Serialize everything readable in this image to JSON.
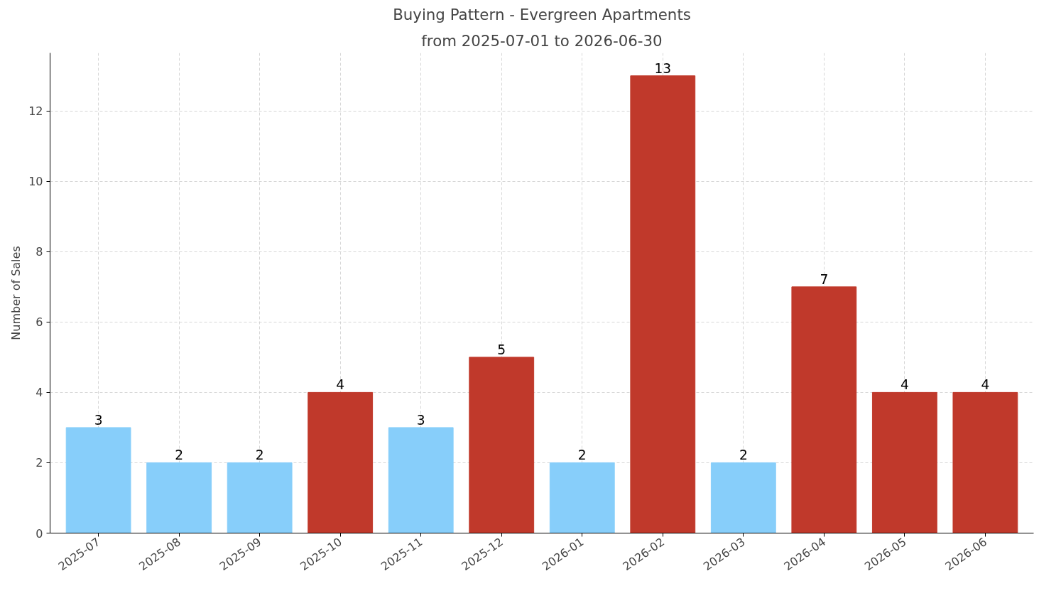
{
  "chart_data": {
    "type": "bar",
    "title": "Buying Pattern - Evergreen Apartments",
    "subtitle": "from 2025-07-01 to 2026-06-30",
    "ylabel": "Number of Sales",
    "categories": [
      "2025-07",
      "2025-08",
      "2025-09",
      "2025-10",
      "2025-11",
      "2025-12",
      "2026-01",
      "2026-02",
      "2026-03",
      "2026-04",
      "2026-05",
      "2026-06"
    ],
    "values": [
      3,
      2,
      2,
      4,
      3,
      5,
      2,
      13,
      2,
      7,
      4,
      4
    ],
    "colors": [
      "#87cefa",
      "#87cefa",
      "#87cefa",
      "#c0392b",
      "#87cefa",
      "#c0392b",
      "#87cefa",
      "#c0392b",
      "#87cefa",
      "#c0392b",
      "#c0392b",
      "#c0392b"
    ],
    "ylim": [
      0,
      13.65
    ],
    "yticks": [
      0,
      2,
      4,
      6,
      8,
      10,
      12
    ],
    "grid": true,
    "data_labels": true
  }
}
